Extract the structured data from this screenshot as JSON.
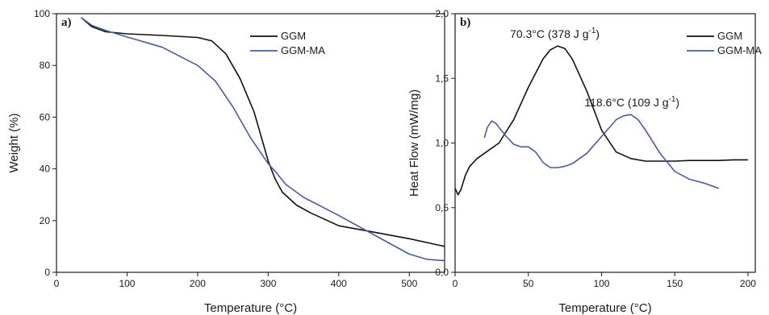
{
  "colors": {
    "GGM": "#111111",
    "GGM-MA": "#4a5aa8"
  },
  "chart_data": [
    {
      "type": "line",
      "panel_label": "a)",
      "xlabel": "Temperature (°C)",
      "ylabel": "Weight (%)",
      "xlim": [
        0,
        550
      ],
      "ylim": [
        0,
        100
      ],
      "xticks": [
        0,
        100,
        200,
        300,
        400,
        500
      ],
      "yticks": [
        0,
        20,
        40,
        60,
        80,
        100
      ],
      "xtick_labels": [
        "0",
        "100",
        "200",
        "300",
        "400",
        "500"
      ],
      "ytick_labels": [
        "0",
        "20",
        "40",
        "60",
        "80",
        "100"
      ],
      "grid": false,
      "legend": {
        "position": "top-right",
        "entries": [
          "GGM",
          "GGM-MA"
        ]
      },
      "series": [
        {
          "name": "GGM",
          "x": [
            35,
            50,
            70,
            100,
            150,
            200,
            220,
            240,
            260,
            280,
            300,
            310,
            320,
            340,
            360,
            400,
            450,
            500,
            550
          ],
          "y": [
            98.5,
            95,
            93,
            92.2,
            91.6,
            90.8,
            89.5,
            84.5,
            75,
            62,
            43,
            36,
            31,
            26,
            23,
            18,
            15.5,
            13,
            10
          ]
        },
        {
          "name": "GGM-MA",
          "x": [
            35,
            50,
            70,
            100,
            150,
            200,
            225,
            250,
            275,
            300,
            310,
            325,
            350,
            400,
            450,
            500,
            525,
            550
          ],
          "y": [
            98.5,
            95.5,
            93.5,
            91,
            87,
            80,
            74,
            64,
            52,
            42,
            39,
            34,
            29,
            22,
            14.5,
            7,
            5,
            4.5
          ]
        }
      ]
    },
    {
      "type": "line",
      "panel_label": "b)",
      "xlabel": "Temperature (°C)",
      "ylabel": "Heat Flow (mW/mg)",
      "xlim": [
        0,
        205
      ],
      "ylim": [
        0,
        2.0
      ],
      "xticks": [
        0,
        50,
        100,
        150,
        200
      ],
      "yticks": [
        0,
        0.5,
        1.0,
        1.5,
        2.0
      ],
      "xtick_labels": [
        "0",
        "50",
        "100",
        "150",
        "200"
      ],
      "ytick_labels": [
        "0,0",
        "0,5",
        "1,0",
        "1,5",
        "2,0"
      ],
      "grid": false,
      "legend": {
        "position": "top-right",
        "entries": [
          "GGM",
          "GGM-MA"
        ]
      },
      "annotations": [
        {
          "text": "70.3°C (378 J g",
          "superscript": "-1",
          "suffix": ")",
          "x": 70.3,
          "y": 1.75
        },
        {
          "text": "118.6°C (109 J g",
          "superscript": "-1",
          "suffix": ")",
          "x": 118.6,
          "y": 1.22
        }
      ],
      "series": [
        {
          "name": "GGM",
          "x": [
            0,
            2,
            4,
            7,
            10,
            15,
            20,
            30,
            40,
            50,
            60,
            65,
            70,
            75,
            80,
            90,
            100,
            110,
            120,
            130,
            140,
            150,
            160,
            170,
            180,
            190,
            200
          ],
          "y": [
            0.65,
            0.6,
            0.64,
            0.75,
            0.82,
            0.88,
            0.92,
            1.0,
            1.18,
            1.43,
            1.65,
            1.72,
            1.75,
            1.73,
            1.65,
            1.4,
            1.1,
            0.93,
            0.88,
            0.86,
            0.86,
            0.86,
            0.865,
            0.865,
            0.865,
            0.87,
            0.87
          ]
        },
        {
          "name": "GGM-MA",
          "x": [
            20,
            22,
            25,
            28,
            30,
            35,
            40,
            45,
            50,
            55,
            60,
            65,
            70,
            75,
            80,
            90,
            100,
            110,
            115,
            120,
            125,
            130,
            140,
            150,
            160,
            170,
            180
          ],
          "y": [
            1.04,
            1.12,
            1.17,
            1.15,
            1.12,
            1.05,
            0.99,
            0.97,
            0.97,
            0.93,
            0.85,
            0.81,
            0.81,
            0.82,
            0.84,
            0.92,
            1.05,
            1.18,
            1.21,
            1.22,
            1.18,
            1.1,
            0.92,
            0.78,
            0.72,
            0.69,
            0.65
          ]
        }
      ]
    }
  ]
}
